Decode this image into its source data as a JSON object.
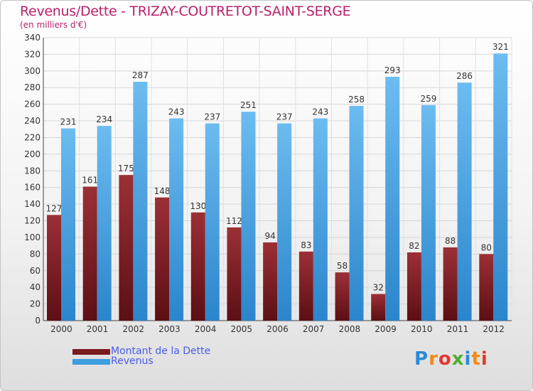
{
  "title": "Revenus/Dette - TRIZAY-COUTRETOT-SAINT-SERGE",
  "subtitle": "(en milliers d'€)",
  "chart_data": {
    "type": "bar",
    "categories": [
      "2000",
      "2001",
      "2002",
      "2003",
      "2004",
      "2005",
      "2006",
      "2007",
      "2008",
      "2009",
      "2010",
      "2011",
      "2012"
    ],
    "series": [
      {
        "name": "Montant de la Dette",
        "color": "#7a1a1f",
        "values": [
          127,
          161,
          175,
          148,
          130,
          112,
          94,
          83,
          58,
          32,
          82,
          88,
          80
        ]
      },
      {
        "name": "Revenus",
        "color": "#3d9ee0",
        "values": [
          231,
          234,
          287,
          243,
          237,
          251,
          237,
          243,
          258,
          293,
          259,
          286,
          321
        ]
      }
    ],
    "ylim": [
      0,
      340
    ],
    "yticks": [
      0,
      20,
      40,
      60,
      80,
      100,
      120,
      140,
      160,
      180,
      200,
      220,
      240,
      260,
      280,
      300,
      320,
      340
    ],
    "grid": true,
    "legend_position": "bottom-left"
  },
  "logo": {
    "letters": [
      "P",
      "r",
      "o",
      "x",
      "i",
      "t",
      "i"
    ],
    "colors": [
      "#2a8ad8",
      "#f08a1c",
      "#e23a2e",
      "#4caf2e",
      "#2a8ad8",
      "#f08a1c",
      "#e23a2e"
    ]
  }
}
